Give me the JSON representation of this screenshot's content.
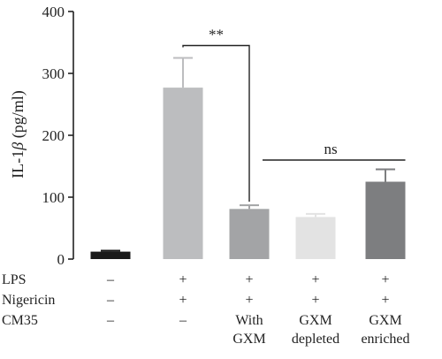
{
  "chart_data": {
    "type": "bar",
    "ylabel_prefix": "IL-1",
    "ylabel_symbol": "β",
    "ylabel_suffix": " (pg/ml)",
    "ylim": [
      0,
      400
    ],
    "yticks": [
      "0",
      "100",
      "200",
      "300",
      "400"
    ],
    "ytick_values": [
      0,
      100,
      200,
      300,
      400
    ],
    "values": [
      12,
      277,
      81,
      68,
      125
    ],
    "errors": [
      1.5,
      48,
      6,
      5,
      20
    ],
    "colors": [
      "#1a1a1a",
      "#bcbdbf",
      "#a3a4a6",
      "#e3e3e3",
      "#7d7e80"
    ],
    "grid": false,
    "condition_rows": [
      {
        "name": "LPS",
        "cells": [
          "–",
          "+",
          "+",
          "+",
          "+"
        ]
      },
      {
        "name": "Nigericin",
        "cells": [
          "–",
          "+",
          "+",
          "+",
          "+"
        ]
      },
      {
        "name": "CM35",
        "cells": [
          "–",
          "–",
          "With\nGXM",
          "GXM\ndepleted",
          "GXM\nenriched"
        ]
      }
    ],
    "annotations": [
      {
        "label": "**",
        "type": "bracket",
        "from": 1,
        "to": 2,
        "y": 345
      },
      {
        "label": "ns",
        "type": "line",
        "from": 2,
        "to": 4,
        "y": 160
      }
    ]
  }
}
